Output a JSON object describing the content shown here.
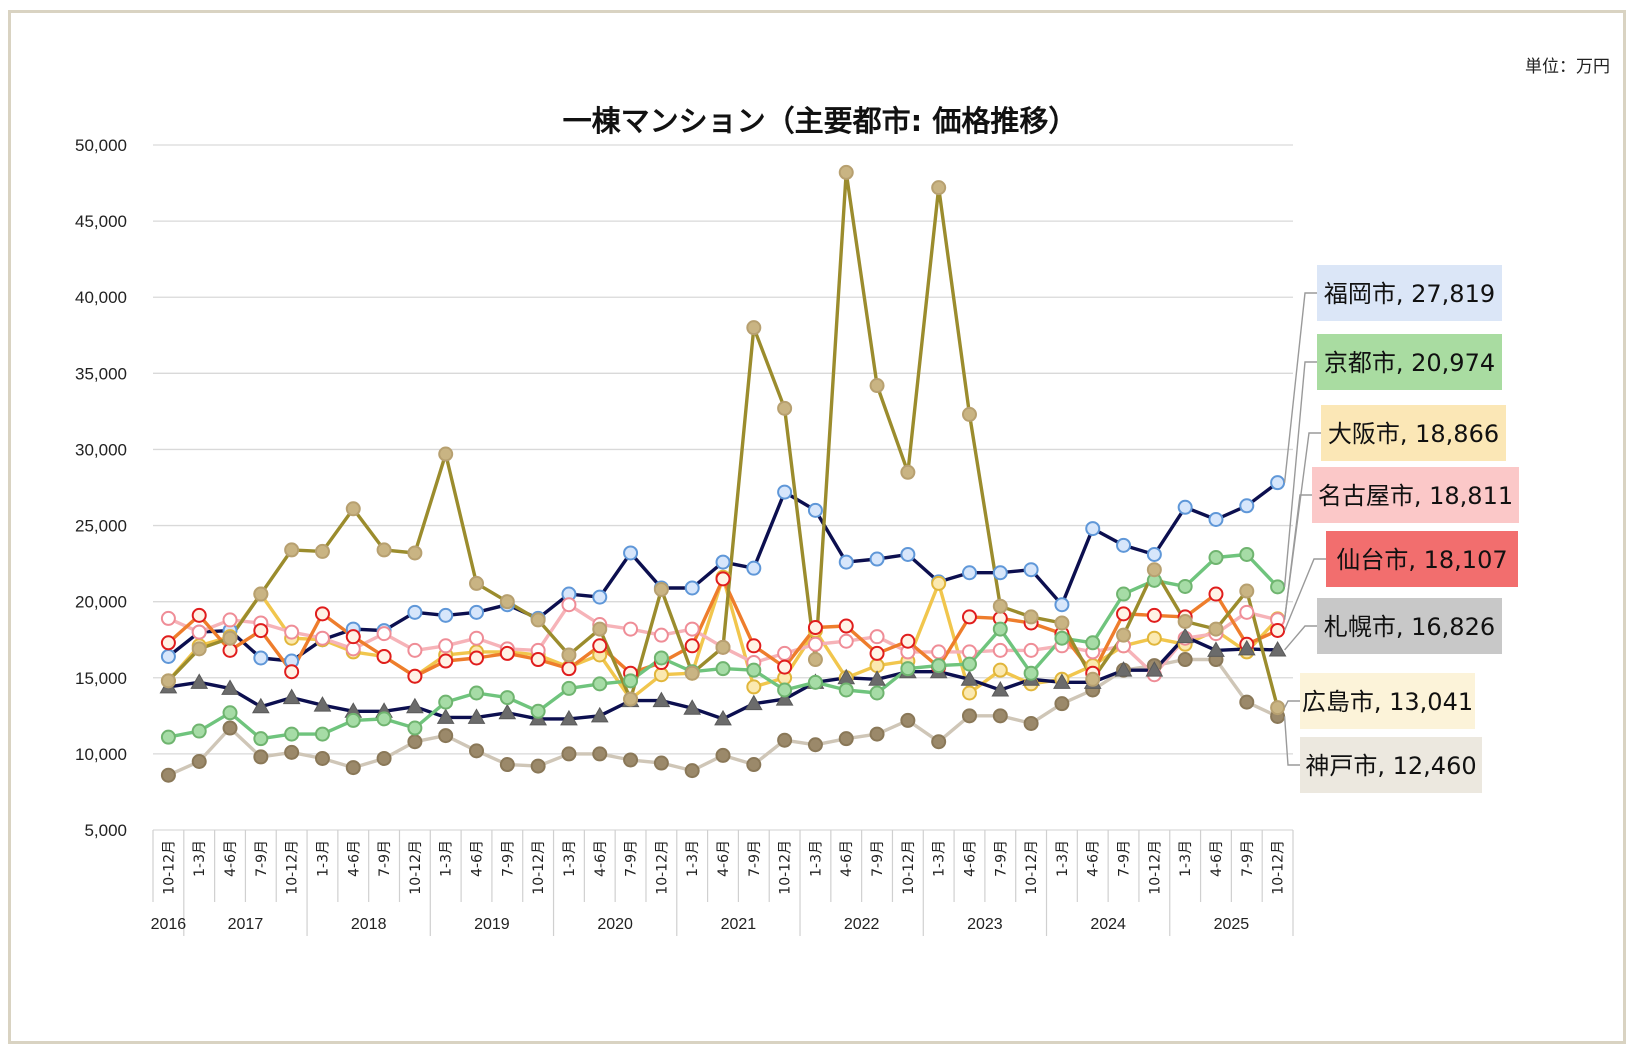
{
  "unit_label": "単位：万円",
  "chart_data": {
    "type": "line",
    "title": "一棟マンション（主要都市: 価格推移）",
    "ylim": [
      5000,
      50000
    ],
    "y_ticks": [
      "50,000",
      "45,000",
      "40,000",
      "35,000",
      "30,000",
      "25,000",
      "20,000",
      "15,000",
      "10,000",
      "5,000"
    ],
    "y_tick_values": [
      50000,
      45000,
      40000,
      35000,
      30000,
      25000,
      20000,
      15000,
      10000,
      5000
    ],
    "grid": true,
    "x_labels": [
      "10-12月",
      "1-3月",
      "4-6月",
      "7-9月",
      "10-12月",
      "1-3月",
      "4-6月",
      "7-9月",
      "10-12月",
      "1-3月",
      "4-6月",
      "7-9月",
      "10-12月",
      "1-3月",
      "4-6月",
      "7-9月",
      "10-12月",
      "1-3月",
      "4-6月",
      "7-9月",
      "10-12月",
      "1-3月",
      "4-6月",
      "7-9月",
      "10-12月",
      "1-3月",
      "4-6月",
      "7-9月",
      "10-12月",
      "1-3月",
      "4-6月",
      "7-9月",
      "10-12月",
      "1-3月",
      "4-6月",
      "7-9月",
      "10-12月"
    ],
    "years": [
      {
        "label": "2016",
        "start": 0,
        "count": 1
      },
      {
        "label": "2017",
        "start": 1,
        "count": 4
      },
      {
        "label": "2018",
        "start": 5,
        "count": 4
      },
      {
        "label": "2019",
        "start": 9,
        "count": 4
      },
      {
        "label": "2020",
        "start": 13,
        "count": 4
      },
      {
        "label": "2021",
        "start": 17,
        "count": 4
      },
      {
        "label": "2022",
        "start": 21,
        "count": 4
      },
      {
        "label": "2023",
        "start": 25,
        "count": 4
      },
      {
        "label": "2024",
        "start": 29,
        "count": 4
      },
      {
        "label": "2025",
        "start": 33,
        "count": 4
      }
    ],
    "series": [
      {
        "name": "福岡市",
        "label": "福岡市, 27,819",
        "color": "#0c0f4f",
        "marker_fill": "#d7e6fb",
        "marker_stroke": "#5f97d8",
        "marker": "circle",
        "label_bg": "#dbe6f7",
        "values": [
          16400,
          18000,
          18100,
          16300,
          16100,
          17500,
          18200,
          18100,
          19300,
          19100,
          19300,
          19800,
          18900,
          20500,
          20300,
          23200,
          20900,
          20900,
          22600,
          22200,
          27200,
          26000,
          22600,
          22800,
          23100,
          21300,
          21900,
          21900,
          22100,
          19800,
          24800,
          23700,
          23100,
          26200,
          25400,
          26300,
          27819
        ]
      },
      {
        "name": "京都市",
        "label": "京都市, 20,974",
        "color": "#6fc47d",
        "marker_fill": "#a6dca6",
        "marker_stroke": "#6fb46f",
        "marker": "circle",
        "label_bg": "#a9dca1",
        "values": [
          11100,
          11500,
          12700,
          11000,
          11300,
          11300,
          12200,
          12300,
          11700,
          13400,
          14000,
          13700,
          12800,
          14300,
          14600,
          14800,
          16300,
          15400,
          15600,
          15500,
          14200,
          14700,
          14200,
          14000,
          15600,
          15800,
          15900,
          18200,
          15300,
          17600,
          17300,
          20500,
          21400,
          21000,
          22900,
          23100,
          20974
        ]
      },
      {
        "name": "大阪市",
        "label": "大阪市, 18,866",
        "color": "#f1c64d",
        "marker_fill": "#fbe9b0",
        "marker_stroke": "#e1b63b",
        "marker": "circle",
        "label_bg": "#fbe7b6",
        "values": [
          14800,
          17100,
          17700,
          20500,
          17600,
          17500,
          16700,
          16400,
          15100,
          16500,
          16700,
          16700,
          16500,
          15700,
          16500,
          13600,
          15200,
          15300,
          21600,
          14400,
          15000,
          18100,
          15000,
          15800,
          16100,
          21200,
          14000,
          15500,
          14600,
          14900,
          15800,
          17100,
          17600,
          17200,
          18100,
          16700,
          18866
        ]
      },
      {
        "name": "名古屋市",
        "label": "名古屋市, 18,811",
        "color": "#f6b3b8",
        "marker_fill": "#ffffff",
        "marker_stroke": "#ef8d97",
        "marker": "circle",
        "label_bg": "#fbc8c8",
        "values": [
          18900,
          18000,
          18800,
          18600,
          18000,
          17600,
          16900,
          17900,
          16800,
          17100,
          17600,
          16900,
          16800,
          19800,
          18500,
          18200,
          17800,
          18200,
          17000,
          16000,
          16600,
          17200,
          17400,
          17700,
          16700,
          16700,
          16700,
          16800,
          16800,
          17100,
          16700,
          17100,
          15200,
          17600,
          17900,
          19300,
          18811
        ]
      },
      {
        "name": "仙台市",
        "label": "仙台市, 18,107",
        "color": "#ee7d2c",
        "marker_fill": "#fff3e6",
        "marker_stroke": "#e01d1d",
        "marker": "circle",
        "label_bg": "#f26e6e",
        "values": [
          17300,
          19100,
          16800,
          18100,
          15400,
          19200,
          17700,
          16400,
          15100,
          16100,
          16300,
          16600,
          16200,
          15600,
          17100,
          15300,
          16000,
          17100,
          21500,
          17100,
          15700,
          18300,
          18400,
          16600,
          17400,
          15700,
          19000,
          18900,
          18600,
          17900,
          15300,
          19200,
          19100,
          19000,
          20500,
          17200,
          18107
        ]
      },
      {
        "name": "札幌市",
        "label": "札幌市, 16,826",
        "color": "#0c0f4f",
        "marker_fill": "#6b6b6b",
        "marker_stroke": "#5a5a5a",
        "marker": "triangle",
        "label_bg": "#c8c8c8",
        "values": [
          14400,
          14700,
          14300,
          13100,
          13700,
          13200,
          12800,
          12800,
          13100,
          12400,
          12400,
          12700,
          12300,
          12300,
          12500,
          13500,
          13500,
          13000,
          12300,
          13300,
          13600,
          14700,
          15000,
          14900,
          15400,
          15400,
          14900,
          14200,
          14900,
          14700,
          14700,
          15500,
          15500,
          17700,
          16800,
          16900,
          16826
        ]
      },
      {
        "name": "広島市",
        "label": "広島市, 13,041",
        "color": "#9b8c2d",
        "marker_fill": "#c9b483",
        "marker_stroke": "#b7a070",
        "marker": "circle",
        "label_bg": "#fcf3d9",
        "values": [
          14800,
          16900,
          17600,
          20500,
          23400,
          23300,
          26100,
          23400,
          23200,
          29700,
          21200,
          20000,
          18800,
          16500,
          18200,
          13600,
          20800,
          15300,
          17000,
          38000,
          32700,
          16200,
          48200,
          34200,
          28500,
          47200,
          32300,
          19700,
          19000,
          18600,
          14900,
          17800,
          22100,
          18700,
          18200,
          20700,
          13041
        ]
      },
      {
        "name": "神戸市",
        "label": "神戸市, 12,460",
        "color": "#cfc6b7",
        "marker_fill": "#9b896a",
        "marker_stroke": "#8a7858",
        "marker": "circle",
        "label_bg": "#ece8df",
        "values": [
          8600,
          9500,
          11700,
          9800,
          10100,
          9700,
          9100,
          9700,
          10800,
          11200,
          10200,
          9300,
          9200,
          10000,
          10000,
          9600,
          9400,
          8900,
          9900,
          9300,
          10900,
          10600,
          11000,
          11300,
          12200,
          10800,
          12500,
          12500,
          12000,
          13300,
          14200,
          15500,
          15800,
          16200,
          16200,
          13400,
          12460
        ]
      }
    ],
    "line_draw_order": [
      7,
      0,
      2,
      3,
      4,
      5,
      1,
      6
    ],
    "label_order": [
      0,
      1,
      2,
      3,
      4,
      5,
      6,
      7
    ]
  }
}
